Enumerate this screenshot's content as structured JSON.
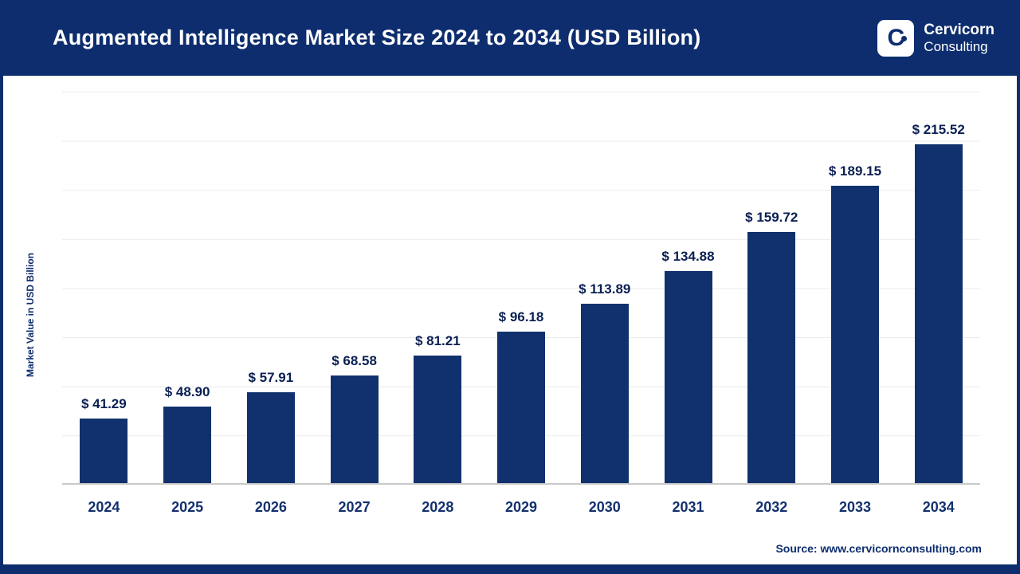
{
  "header": {
    "title": "Augmented Intelligence Market Size 2024 to 2034 (USD Billion)",
    "logo": {
      "mark": "C",
      "name": "Cervicorn",
      "suffix": "Consulting"
    }
  },
  "chart_data": {
    "type": "bar",
    "title": "Augmented Intelligence Market Size 2024 to 2034 (USD Billion)",
    "categories": [
      "2024",
      "2025",
      "2026",
      "2027",
      "2028",
      "2029",
      "2030",
      "2031",
      "2032",
      "2033",
      "2034"
    ],
    "values": [
      41.29,
      48.9,
      57.91,
      68.58,
      81.21,
      96.18,
      113.89,
      134.88,
      159.72,
      189.15,
      215.52
    ],
    "value_labels": [
      "$ 41.29",
      "$ 48.90",
      "$ 57.91",
      "$ 68.58",
      "$ 81.21",
      "$ 96.18",
      "$ 113.89",
      "$ 134.88",
      "$ 159.72",
      "$ 189.15",
      "$ 215.52"
    ],
    "xlabel": "",
    "ylabel": "Market Value in USD Billion",
    "ylim": [
      0,
      250
    ],
    "grid": true,
    "legend": "none",
    "bar_color": "#10316e",
    "accent_color": "#0d2d6e"
  },
  "footer": {
    "source": "Source: www.cervicornconsulting.com"
  }
}
